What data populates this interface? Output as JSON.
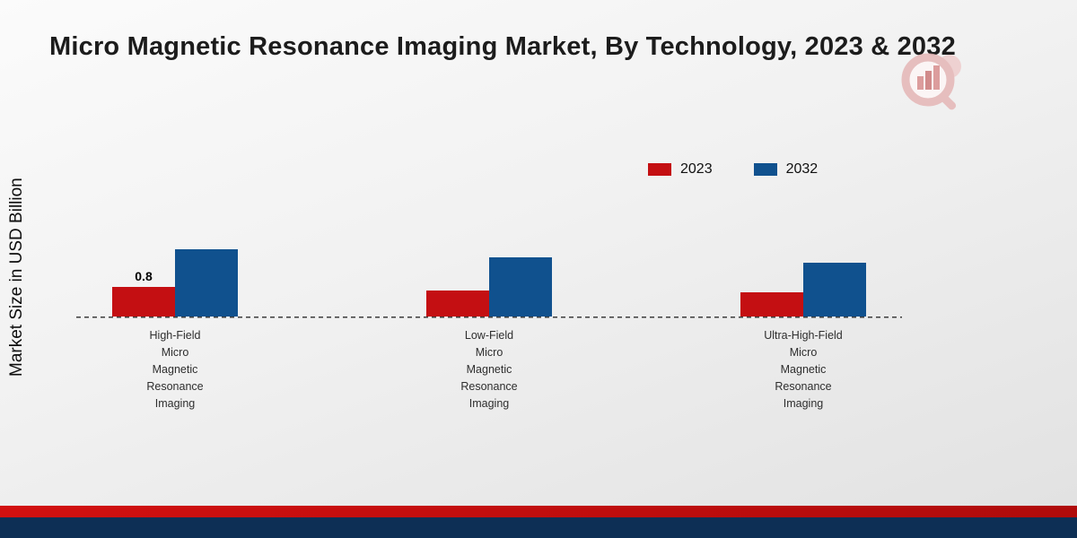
{
  "title": "Micro Magnetic Resonance Imaging Market, By Technology, 2023 & 2032",
  "ylabel": "Market Size in USD Billion",
  "legend": {
    "items": [
      {
        "label": "2023",
        "color": "#c40f12"
      },
      {
        "label": "2032",
        "color": "#10518e"
      }
    ]
  },
  "chart_data": {
    "type": "bar",
    "title": "Micro Magnetic Resonance Imaging Market, By Technology, 2023 & 2032",
    "xlabel": "",
    "ylabel": "Market Size in USD Billion",
    "categories": [
      "High-Field Micro Magnetic Resonance Imaging",
      "Low-Field Micro Magnetic Resonance Imaging",
      "Ultra-High-Field Micro Magnetic Resonance Imaging"
    ],
    "category_lines": [
      [
        "High-Field",
        "Micro",
        "Magnetic",
        "Resonance",
        "Imaging"
      ],
      [
        "Low-Field",
        "Micro",
        "Magnetic",
        "Resonance",
        "Imaging"
      ],
      [
        "Ultra-High-Field",
        "Micro",
        "Magnetic",
        "Resonance",
        "Imaging"
      ]
    ],
    "series": [
      {
        "name": "2023",
        "color": "#c40f12",
        "values": [
          0.8,
          0.7,
          0.65
        ]
      },
      {
        "name": "2032",
        "color": "#10518e",
        "values": [
          1.8,
          1.6,
          1.45
        ]
      }
    ],
    "value_labels": [
      {
        "series": "2023",
        "category_index": 0,
        "text": "0.8"
      }
    ],
    "ylim": [
      0,
      2.0
    ],
    "grid": false,
    "baseline_style": "dashed",
    "legend_position": "top-right"
  },
  "colors": {
    "series_2023": "#c40f12",
    "series_2032": "#10518e",
    "footer_stripe": "#c90d0d",
    "footer_bar": "#0d2f55",
    "logo_pink": "#e5b6b6"
  },
  "footer": {
    "stripe": "",
    "bar": ""
  }
}
